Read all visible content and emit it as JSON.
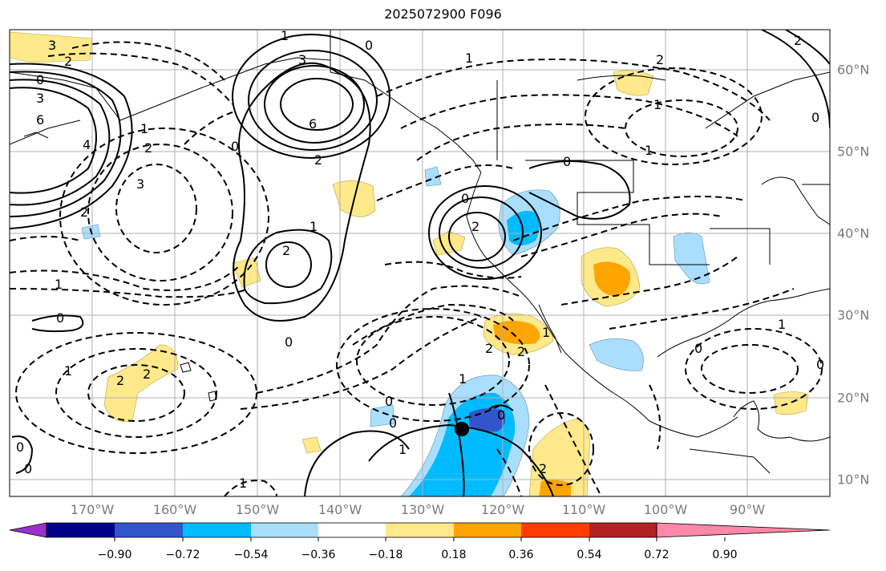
{
  "title": "2025072900 F096",
  "lon_labels": [
    "170°W",
    "160°W",
    "150°W",
    "140°W",
    "130°W",
    "120°W",
    "110°W",
    "100°W",
    "90°W"
  ],
  "lat_labels": [
    "60°N",
    "50°N",
    "40°N",
    "30°N",
    "20°N",
    "10°N"
  ],
  "colorbar": {
    "colors": [
      "#9932cc",
      "#000088",
      "#3355cc",
      "#00bbff",
      "#aadeff",
      "#ffffff",
      "#ffe98a",
      "#ffa500",
      "#ff3b00",
      "#b22222",
      "#ff88aa"
    ],
    "tick_labels": [
      "−0.90",
      "−0.72",
      "−0.54",
      "−0.36",
      "−0.18",
      "0.18",
      "0.36",
      "0.54",
      "0.72",
      "0.90"
    ]
  },
  "contour_labels": [
    "3",
    "2",
    "0",
    "3",
    "6",
    "4",
    "1",
    "3",
    "6",
    "2",
    "0",
    "1",
    "2",
    "1",
    "2",
    "0",
    "1",
    "0",
    "2",
    "3",
    "2",
    "2",
    "1",
    "0",
    "2",
    "2",
    "1",
    "0",
    "0",
    "1",
    "0",
    "2",
    "1",
    "0",
    "1",
    "0",
    "1",
    "2",
    "0",
    "0",
    "2",
    "1",
    "0",
    "0",
    "1",
    "2",
    "1",
    "0"
  ],
  "marker": {
    "label": "storm-center"
  }
}
